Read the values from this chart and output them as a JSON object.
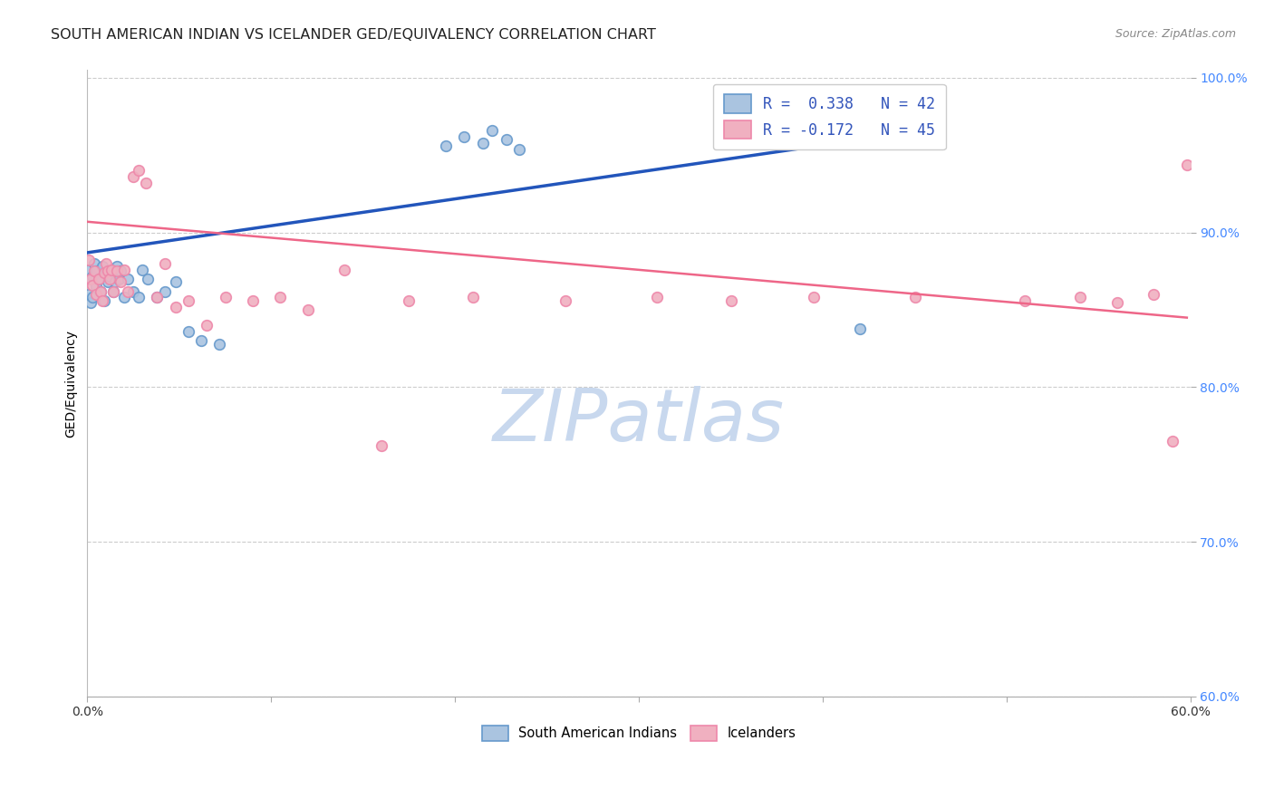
{
  "title": "SOUTH AMERICAN INDIAN VS ICELANDER GED/EQUIVALENCY CORRELATION CHART",
  "source": "Source: ZipAtlas.com",
  "ylabel": "GED/Equivalency",
  "xlim": [
    0.0,
    0.6
  ],
  "ylim": [
    0.6,
    1.005
  ],
  "yticks": [
    0.6,
    0.7,
    0.8,
    0.9,
    1.0
  ],
  "ytick_labels": [
    "60.0%",
    "70.0%",
    "80.0%",
    "90.0%",
    "100.0%"
  ],
  "xtick_left_label": "0.0%",
  "xtick_right_label": "60.0%",
  "sai_x": [
    0.001,
    0.001,
    0.002,
    0.002,
    0.003,
    0.003,
    0.004,
    0.005,
    0.005,
    0.006,
    0.007,
    0.008,
    0.009,
    0.01,
    0.011,
    0.012,
    0.013,
    0.014,
    0.015,
    0.016,
    0.017,
    0.018,
    0.02,
    0.022,
    0.025,
    0.028,
    0.03,
    0.033,
    0.038,
    0.042,
    0.048,
    0.055,
    0.062,
    0.072,
    0.195,
    0.205,
    0.215,
    0.22,
    0.228,
    0.235,
    0.42,
    0.43
  ],
  "sai_y": [
    0.876,
    0.86,
    0.87,
    0.855,
    0.872,
    0.858,
    0.88,
    0.865,
    0.875,
    0.87,
    0.862,
    0.878,
    0.856,
    0.874,
    0.868,
    0.872,
    0.876,
    0.862,
    0.868,
    0.878,
    0.87,
    0.875,
    0.858,
    0.87,
    0.862,
    0.858,
    0.876,
    0.87,
    0.858,
    0.862,
    0.868,
    0.836,
    0.83,
    0.828,
    0.956,
    0.962,
    0.958,
    0.966,
    0.96,
    0.954,
    0.838,
    0.99
  ],
  "ice_x": [
    0.001,
    0.002,
    0.003,
    0.004,
    0.005,
    0.006,
    0.007,
    0.008,
    0.009,
    0.01,
    0.011,
    0.012,
    0.013,
    0.014,
    0.016,
    0.018,
    0.02,
    0.022,
    0.025,
    0.028,
    0.032,
    0.038,
    0.042,
    0.048,
    0.055,
    0.065,
    0.075,
    0.09,
    0.105,
    0.12,
    0.14,
    0.16,
    0.175,
    0.21,
    0.26,
    0.31,
    0.35,
    0.395,
    0.45,
    0.51,
    0.54,
    0.56,
    0.58,
    0.59,
    0.598
  ],
  "ice_y": [
    0.882,
    0.87,
    0.866,
    0.875,
    0.86,
    0.87,
    0.862,
    0.856,
    0.874,
    0.88,
    0.875,
    0.87,
    0.876,
    0.862,
    0.875,
    0.868,
    0.876,
    0.862,
    0.936,
    0.94,
    0.932,
    0.858,
    0.88,
    0.852,
    0.856,
    0.84,
    0.858,
    0.856,
    0.858,
    0.85,
    0.876,
    0.762,
    0.856,
    0.858,
    0.856,
    0.858,
    0.856,
    0.858,
    0.858,
    0.856,
    0.858,
    0.855,
    0.86,
    0.765,
    0.944
  ],
  "blue_line": {
    "x0": 0.0,
    "y0": 0.887,
    "x1": 0.42,
    "y1": 0.96
  },
  "pink_line": {
    "x0": 0.0,
    "y0": 0.907,
    "x1": 0.598,
    "y1": 0.845
  },
  "blue_scatter_color": "#aac4e0",
  "blue_edge_color": "#6699cc",
  "pink_scatter_color": "#f0b0c0",
  "pink_edge_color": "#ee88aa",
  "blue_line_color": "#2255bb",
  "pink_line_color": "#ee6688",
  "marker_size": 70,
  "grid_color": "#cccccc",
  "title_color": "#222222",
  "source_color": "#888888",
  "ytick_color": "#4488ff",
  "watermark_color": "#c8d8ee",
  "legend_text_color": "#3355bb",
  "title_fontsize": 11.5,
  "source_fontsize": 9,
  "tick_fontsize": 10,
  "ylabel_fontsize": 10,
  "legend_fontsize": 12
}
